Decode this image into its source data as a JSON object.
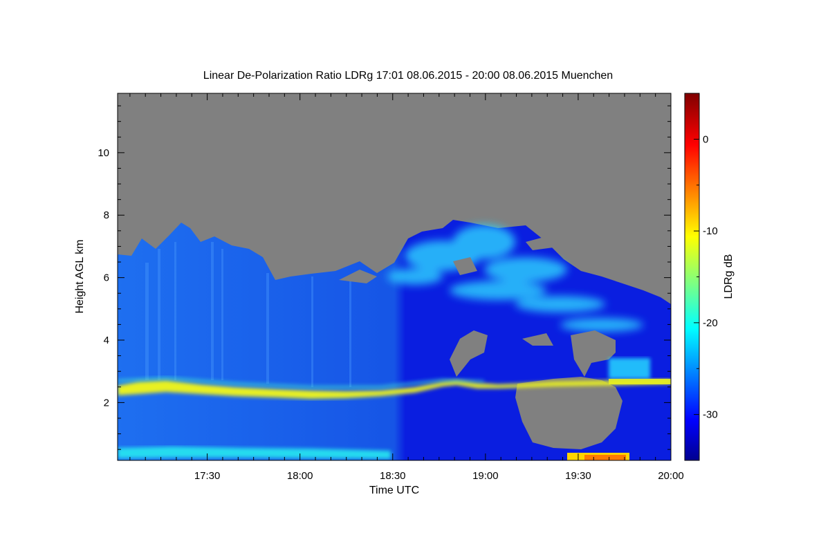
{
  "chart_data": {
    "type": "heatmap",
    "title": "Linear De-Polarization Ratio LDRg   17:01 08.06.2015 - 20:00 08.06.2015 Muenchen",
    "xlabel": "Time UTC",
    "ylabel": "Height AGL km",
    "colorbar_label": "LDRg dB",
    "x_range": [
      "17:01",
      "20:00"
    ],
    "x_ticks": [
      "17:30",
      "18:00",
      "18:30",
      "19:00",
      "19:30",
      "20:00"
    ],
    "ylim": [
      0.15,
      11.9
    ],
    "y_ticks": [
      2,
      4,
      6,
      8,
      10
    ],
    "colorbar_range": [
      -35,
      5
    ],
    "colorbar_ticks": [
      -30,
      -20,
      -10,
      0
    ],
    "colormap": "jet",
    "no_data_color": "#808080",
    "features": [
      {
        "description": "melting layer band",
        "height_km": [
          2.3,
          2.7
        ],
        "ldr_db": -12
      },
      {
        "description": "near-ground insect layer",
        "height_km": [
          0.2,
          0.6
        ],
        "ldr_db": -22
      },
      {
        "description": "cirrus / ice cloud top",
        "height_km": [
          6.2,
          8.0
        ],
        "ldr_db": -23
      }
    ]
  }
}
